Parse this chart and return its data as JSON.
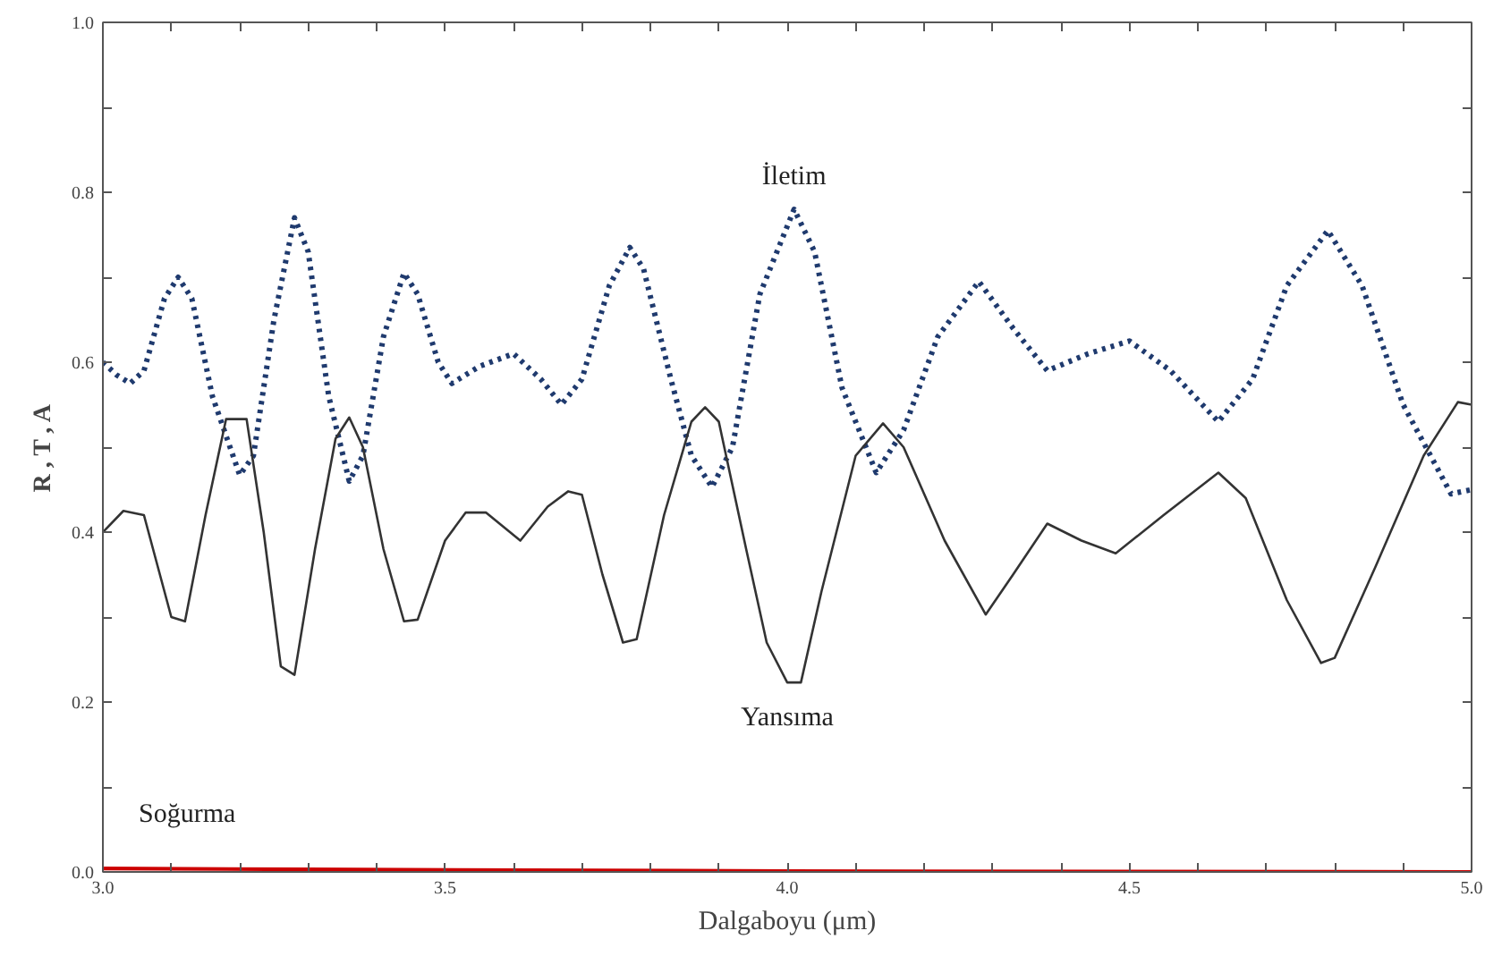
{
  "chart_data": {
    "type": "line",
    "xlabel": "Dalgaboyu (μm)",
    "ylabel": "R , T , A",
    "xlim": [
      3.0,
      5.0
    ],
    "ylim": [
      0.0,
      1.0
    ],
    "xticks": [
      {
        "value": 3,
        "label": "3.0"
      },
      {
        "value": 3.1,
        "label": null
      },
      {
        "value": 3.2,
        "label": null
      },
      {
        "value": 3.3,
        "label": null
      },
      {
        "value": 3.4,
        "label": null
      },
      {
        "value": 3.5,
        "label": "3.5"
      },
      {
        "value": 3.6,
        "label": null
      },
      {
        "value": 3.7,
        "label": null
      },
      {
        "value": 3.8,
        "label": null
      },
      {
        "value": 3.9,
        "label": null
      },
      {
        "value": 4,
        "label": "4.0"
      },
      {
        "value": 4.1,
        "label": null
      },
      {
        "value": 4.2,
        "label": null
      },
      {
        "value": 4.3,
        "label": null
      },
      {
        "value": 4.4,
        "label": null
      },
      {
        "value": 4.5,
        "label": "4.5"
      },
      {
        "value": 4.6,
        "label": null
      },
      {
        "value": 4.7,
        "label": null
      },
      {
        "value": 4.8,
        "label": null
      },
      {
        "value": 4.9,
        "label": null
      },
      {
        "value": 5,
        "label": "5.0"
      }
    ],
    "yticks": [
      {
        "value": 0,
        "label": "0.0"
      },
      {
        "value": 0.1,
        "label": null
      },
      {
        "value": 0.2,
        "label": "0.2"
      },
      {
        "value": 0.3,
        "label": null
      },
      {
        "value": 0.4,
        "label": "0.4"
      },
      {
        "value": 0.5,
        "label": null
      },
      {
        "value": 0.6,
        "label": "0.6"
      },
      {
        "value": 0.7,
        "label": null
      },
      {
        "value": 0.8,
        "label": "0.8"
      },
      {
        "value": 0.9,
        "label": null
      },
      {
        "value": 1,
        "label": "1.0"
      }
    ],
    "grid": false,
    "legend": false,
    "marker": "none",
    "series": [
      {
        "name": "İletim",
        "color": "#1f3a6e",
        "line_style": "dotted",
        "x": [
          3.0,
          3.02,
          3.04,
          3.06,
          3.09,
          3.11,
          3.13,
          3.16,
          3.2,
          3.22,
          3.25,
          3.28,
          3.3,
          3.33,
          3.36,
          3.38,
          3.41,
          3.44,
          3.46,
          3.49,
          3.51,
          3.55,
          3.6,
          3.64,
          3.67,
          3.7,
          3.74,
          3.77,
          3.79,
          3.83,
          3.86,
          3.89,
          3.92,
          3.96,
          4.01,
          4.04,
          4.08,
          4.13,
          4.17,
          4.22,
          4.28,
          4.33,
          4.38,
          4.44,
          4.5,
          4.56,
          4.63,
          4.68,
          4.73,
          4.79,
          4.84,
          4.9,
          4.97,
          5.0
        ],
        "values": [
          0.6,
          0.585,
          0.575,
          0.59,
          0.675,
          0.7,
          0.675,
          0.56,
          0.467,
          0.49,
          0.65,
          0.77,
          0.73,
          0.56,
          0.46,
          0.49,
          0.63,
          0.705,
          0.68,
          0.6,
          0.575,
          0.595,
          0.61,
          0.58,
          0.55,
          0.58,
          0.69,
          0.735,
          0.71,
          0.58,
          0.49,
          0.453,
          0.5,
          0.68,
          0.78,
          0.73,
          0.57,
          0.47,
          0.52,
          0.63,
          0.695,
          0.64,
          0.59,
          0.61,
          0.625,
          0.59,
          0.53,
          0.58,
          0.69,
          0.755,
          0.69,
          0.55,
          0.445,
          0.45
        ]
      },
      {
        "name": "Yansıma",
        "color": "#333333",
        "line_style": "solid",
        "x": [
          3.0,
          3.03,
          3.06,
          3.08,
          3.1,
          3.12,
          3.15,
          3.18,
          3.21,
          3.235,
          3.26,
          3.28,
          3.31,
          3.34,
          3.36,
          3.38,
          3.41,
          3.44,
          3.46,
          3.5,
          3.53,
          3.56,
          3.61,
          3.65,
          3.68,
          3.7,
          3.73,
          3.76,
          3.78,
          3.82,
          3.86,
          3.88,
          3.9,
          3.94,
          3.97,
          4.0,
          4.02,
          4.05,
          4.1,
          4.14,
          4.17,
          4.23,
          4.29,
          4.33,
          4.38,
          4.43,
          4.48,
          4.55,
          4.63,
          4.67,
          4.73,
          4.78,
          4.8,
          4.86,
          4.93,
          4.98,
          5.0
        ],
        "values": [
          0.4,
          0.425,
          0.42,
          0.36,
          0.3,
          0.295,
          0.42,
          0.533,
          0.533,
          0.4,
          0.242,
          0.232,
          0.38,
          0.51,
          0.535,
          0.5,
          0.38,
          0.295,
          0.297,
          0.39,
          0.423,
          0.423,
          0.39,
          0.43,
          0.448,
          0.444,
          0.35,
          0.27,
          0.274,
          0.42,
          0.53,
          0.547,
          0.53,
          0.38,
          0.27,
          0.223,
          0.223,
          0.33,
          0.49,
          0.528,
          0.5,
          0.39,
          0.303,
          0.35,
          0.41,
          0.39,
          0.375,
          0.42,
          0.47,
          0.44,
          0.32,
          0.246,
          0.252,
          0.36,
          0.49,
          0.553,
          0.55
        ]
      },
      {
        "name": "Soğurma",
        "color": "#cc0000",
        "line_style": "solid",
        "x": [
          3.0,
          3.3,
          4.0,
          5.0
        ],
        "values": [
          0.004,
          0.003,
          0.001,
          0.0
        ]
      }
    ]
  }
}
